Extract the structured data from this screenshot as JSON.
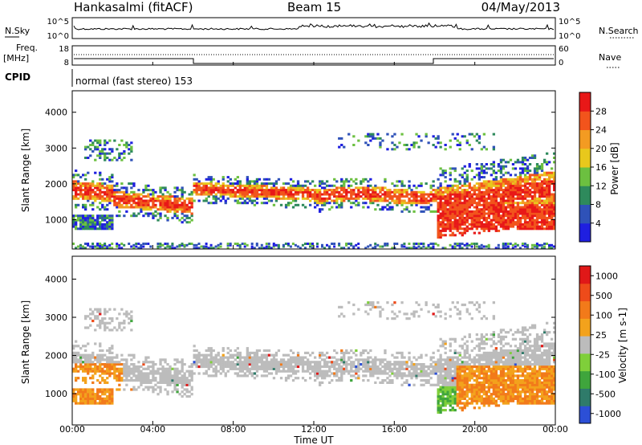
{
  "header": {
    "station": "Hankasalmi (fitACF)",
    "beam": "Beam 15",
    "date": "04/May/2013"
  },
  "status_panel": {
    "left_labels": [
      "N.Sky",
      "Freq.",
      "[MHz]",
      "CPID"
    ],
    "right_labels": [
      "N.Search",
      "Nave"
    ],
    "nsky_ticks": [
      "10^5",
      "10^0"
    ],
    "nsearch_ticks": [
      "10^5",
      "10^0"
    ],
    "freq_ticks": [
      "18",
      "8"
    ],
    "nave_ticks": [
      "60",
      "0"
    ],
    "cpid_text": "normal (fast stereo) 153"
  },
  "axes": {
    "xlabel": "Time UT",
    "ylabel": "Slant Range [km]",
    "x_ticks": [
      "00:00",
      "04:00",
      "08:00",
      "12:00",
      "16:00",
      "20:00",
      "00:00"
    ],
    "y_ticks": [
      "1000",
      "2000",
      "3000",
      "4000"
    ]
  },
  "chart_data": [
    {
      "type": "heatmap",
      "parameter": "Power",
      "colorbar_label": "Power [dB]",
      "colorbar_ticks": [
        "4",
        "8",
        "12",
        "16",
        "20",
        "24",
        "28"
      ],
      "colorbar_colors": [
        "#1f1fe0",
        "#2f52b8",
        "#2e8a5c",
        "#6cc040",
        "#e8c81c",
        "#f39b22",
        "#f2541c",
        "#e81818"
      ],
      "x_range_hours": [
        0,
        24
      ],
      "y_range_km": [
        180,
        4600
      ],
      "ylim": [
        180,
        4600
      ]
    },
    {
      "type": "heatmap",
      "parameter": "Velocity",
      "colorbar_label": "Velocity [m s-1]",
      "colorbar_ticks": [
        "1000",
        "500",
        "100",
        "25",
        "-25",
        "-100",
        "-500",
        "-1000"
      ],
      "colorbar_colors": [
        "#2c4fd6",
        "#2f7b6a",
        "#3fa53c",
        "#7fcf3a",
        "#bcbcbc",
        "#f3a21c",
        "#f27a1a",
        "#ee4b1a",
        "#e01818"
      ],
      "x_range_hours": [
        0,
        24
      ],
      "y_range_km": [
        180,
        4600
      ],
      "ylim": [
        180,
        4600
      ]
    }
  ]
}
